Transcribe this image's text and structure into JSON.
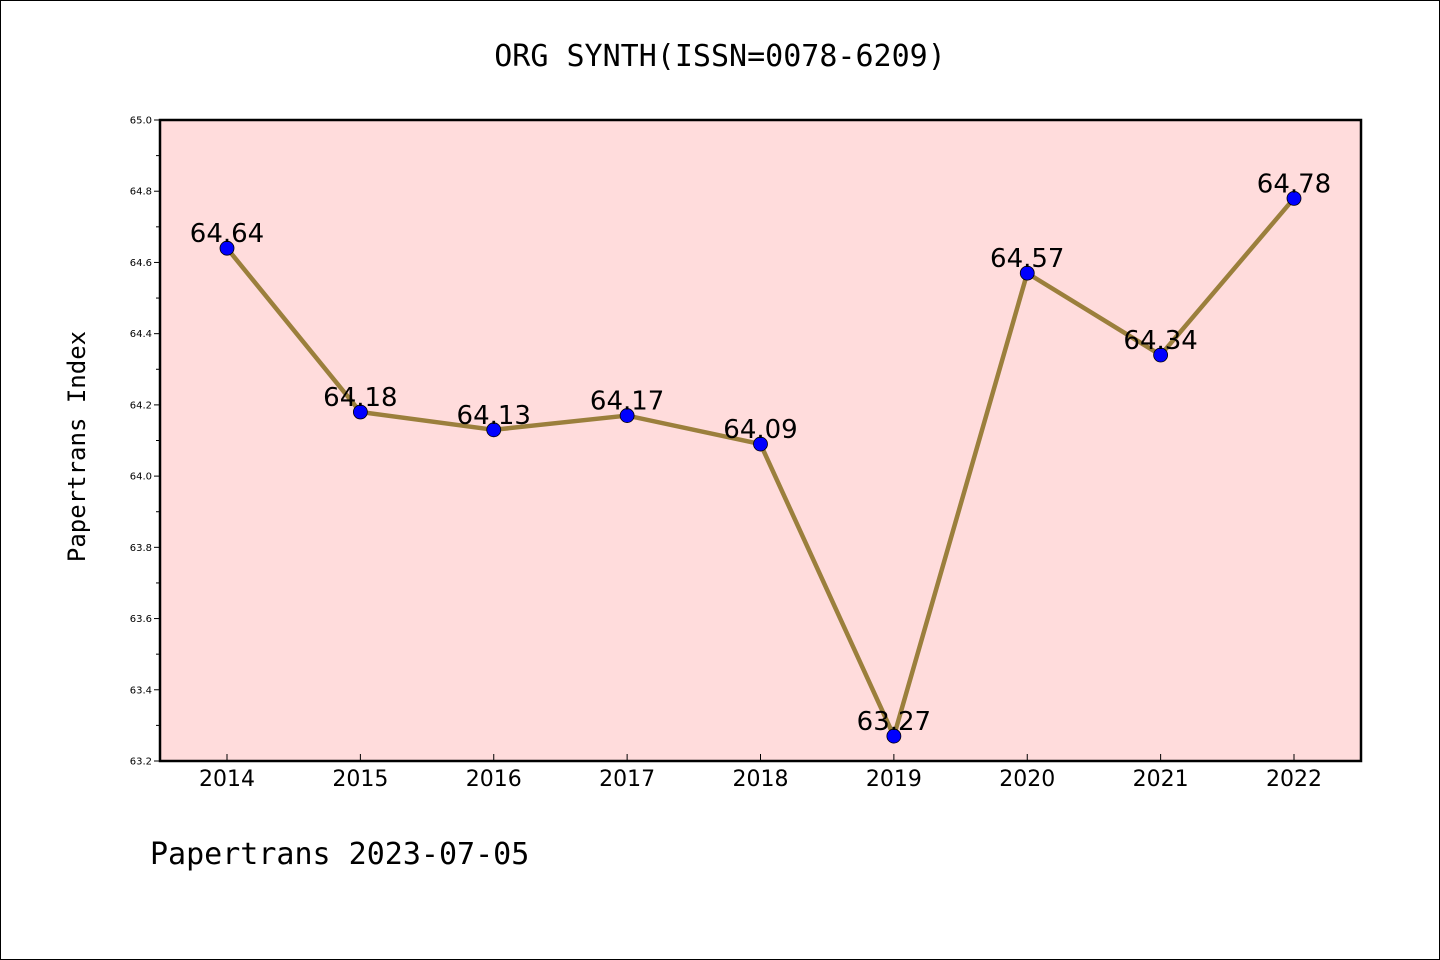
{
  "chart_data": {
    "type": "line",
    "title": "ORG SYNTH(ISSN=0078-6209)",
    "xlabel": "",
    "ylabel": "Papertrans Index",
    "categories": [
      "2014",
      "2015",
      "2016",
      "2017",
      "2018",
      "2019",
      "2020",
      "2021",
      "2022"
    ],
    "series": [
      {
        "values": [
          64.64,
          64.18,
          64.13,
          64.17,
          64.09,
          63.27,
          64.57,
          64.34,
          64.78
        ]
      }
    ],
    "data_labels": [
      "64.64",
      "64.18",
      "64.13",
      "64.17",
      "64.09",
      "63.27",
      "64.57",
      "64.34",
      "64.78"
    ],
    "ylim": [
      63.2,
      65.0
    ],
    "yticks": [
      "63.2",
      "63.4",
      "63.6",
      "63.8",
      "64.0",
      "64.2",
      "64.4",
      "64.6",
      "64.8",
      "65.0"
    ],
    "grid": false,
    "legend": "none",
    "colors": {
      "plot_background": "#ffdcdc",
      "line": "#9b7f3c",
      "marker": "#0000ff"
    }
  },
  "footer": "Papertrans 2023-07-05"
}
